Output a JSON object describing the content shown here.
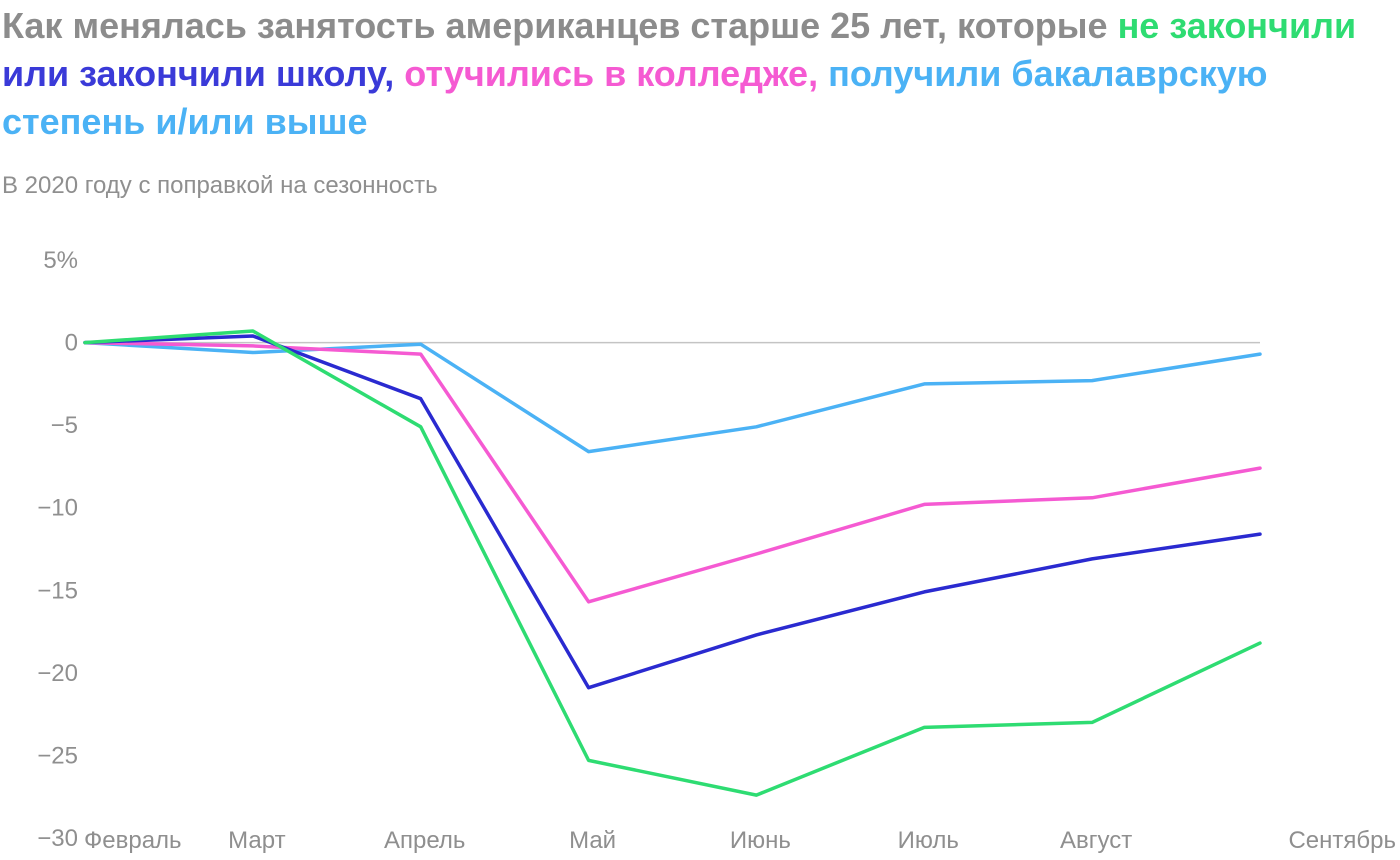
{
  "chart_data": {
    "type": "line",
    "title_parts": [
      {
        "text": "Как менялась занятость американцев старше 25 лет, которые ",
        "color": "#8c8c8c"
      },
      {
        "text": "не закончили",
        "color": "#2edc72"
      },
      {
        "text": " ",
        "color": "#8c8c8c"
      },
      {
        "text": "или закончили школу,",
        "color": "#3a3ad8"
      },
      {
        "text": " ",
        "color": "#8c8c8c"
      },
      {
        "text": "отучились в колледже,",
        "color": "#f55ad2"
      },
      {
        "text": " ",
        "color": "#8c8c8c"
      },
      {
        "text": "получили бакалаврскую степень и/или выше",
        "color": "#4bb2f5"
      }
    ],
    "subtitle": "В 2020 году с поправкой на сезонность",
    "categories": [
      "Февраль",
      "Март",
      "Апрель",
      "Май",
      "Июнь",
      "Июль",
      "Август",
      "Сентябрь"
    ],
    "ylim": [
      -30,
      5
    ],
    "yticks": [
      5,
      0,
      -5,
      -10,
      -15,
      -20,
      -25,
      -30
    ],
    "ytick_labels": [
      "5%",
      "0",
      "−5",
      "−10",
      "−15",
      "−20",
      "−25",
      "−30"
    ],
    "zero_line": true,
    "grid": false,
    "series": [
      {
        "color": "#4bb2f5",
        "values": [
          0,
          -0.6,
          -0.1,
          -6.6,
          -5.1,
          -2.5,
          -2.3,
          -0.7
        ]
      },
      {
        "color": "#f55ad2",
        "values": [
          0,
          -0.2,
          -0.7,
          -15.7,
          -12.8,
          -9.8,
          -9.4,
          -7.6
        ]
      },
      {
        "color": "#2a2ad0",
        "values": [
          0,
          0.4,
          -3.4,
          -20.9,
          -17.7,
          -15.1,
          -13.1,
          -11.6
        ]
      },
      {
        "color": "#2edc72",
        "values": [
          0,
          0.7,
          -5.1,
          -25.3,
          -27.4,
          -23.3,
          -23.0,
          -18.2
        ]
      }
    ]
  }
}
